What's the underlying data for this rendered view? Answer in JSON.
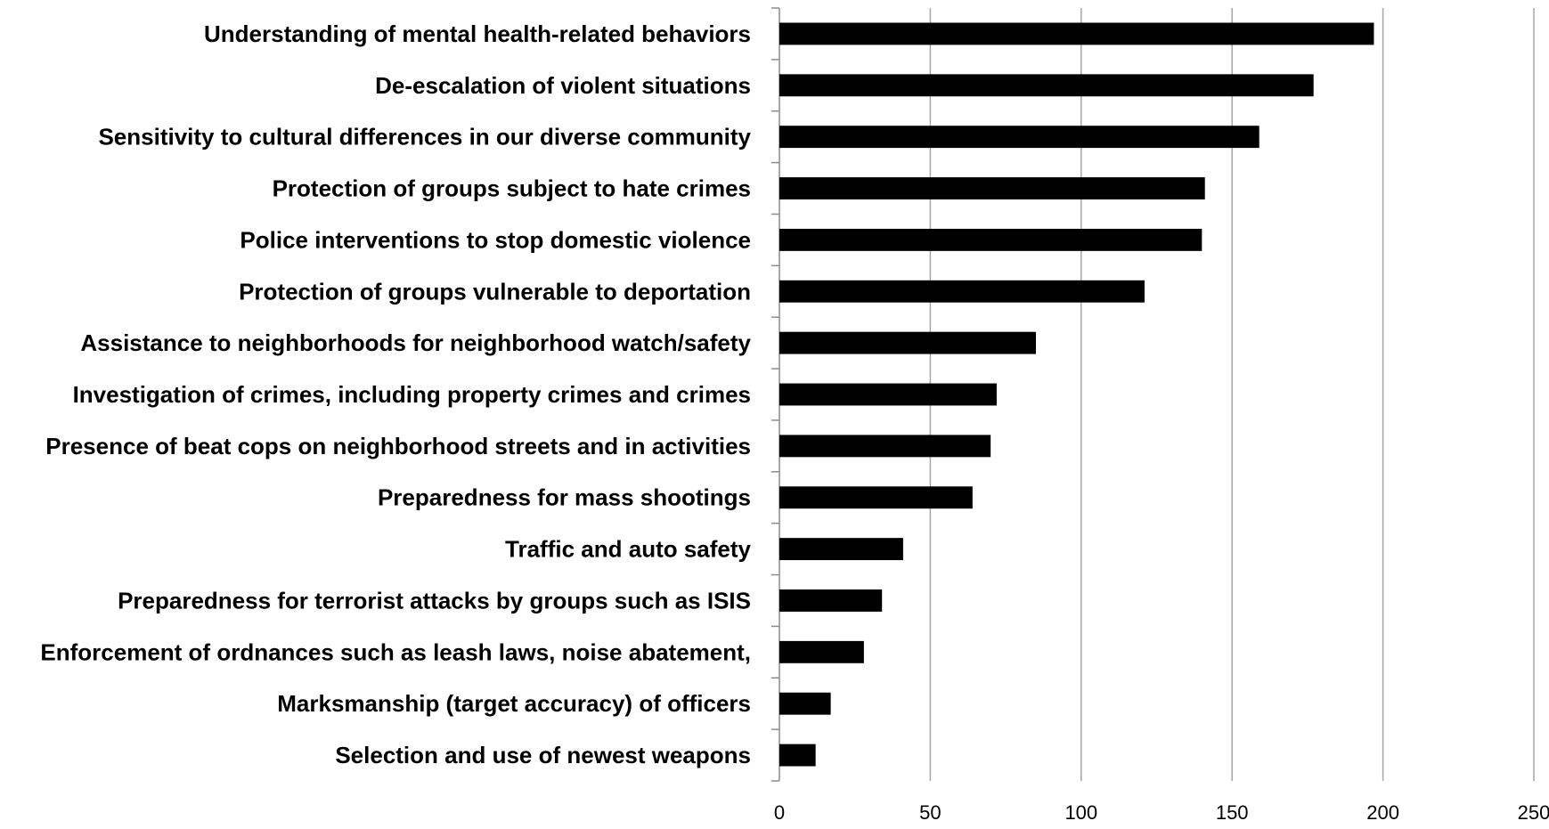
{
  "chart_data": {
    "type": "bar",
    "orientation": "horizontal",
    "categories": [
      "Understanding of mental health-related behaviors",
      "De-escalation of violent situations",
      "Sensitivity to cultural differences in our diverse community",
      "Protection of groups subject to hate crimes",
      "Police interventions to stop domestic violence",
      "Protection of groups vulnerable to deportation",
      "Assistance to neighborhoods for neighborhood watch/safety",
      "Investigation of crimes, including property crimes and crimes",
      "Presence of beat cops on neighborhood streets and in activities",
      "Preparedness for mass shootings",
      "Traffic and auto safety",
      "Preparedness for terrorist attacks by groups such as ISIS",
      "Enforcement of ordnances such as leash laws, noise abatement,",
      "Marksmanship (target accuracy) of officers",
      "Selection and use of newest weapons"
    ],
    "values": [
      197,
      177,
      159,
      141,
      140,
      121,
      85,
      72,
      70,
      64,
      41,
      34,
      28,
      17,
      12
    ],
    "xlim": [
      0,
      250
    ],
    "xticks": [
      "0",
      "50",
      "100",
      "150",
      "200",
      "250"
    ],
    "xtick_values": [
      0,
      50,
      100,
      150,
      200,
      250
    ],
    "title": "",
    "xlabel": "",
    "ylabel": "",
    "grid": "vertical",
    "legend": "none",
    "bar_color": "#000000",
    "grid_color": "#a6a6a6",
    "axis_color": "#8c8c8c"
  }
}
